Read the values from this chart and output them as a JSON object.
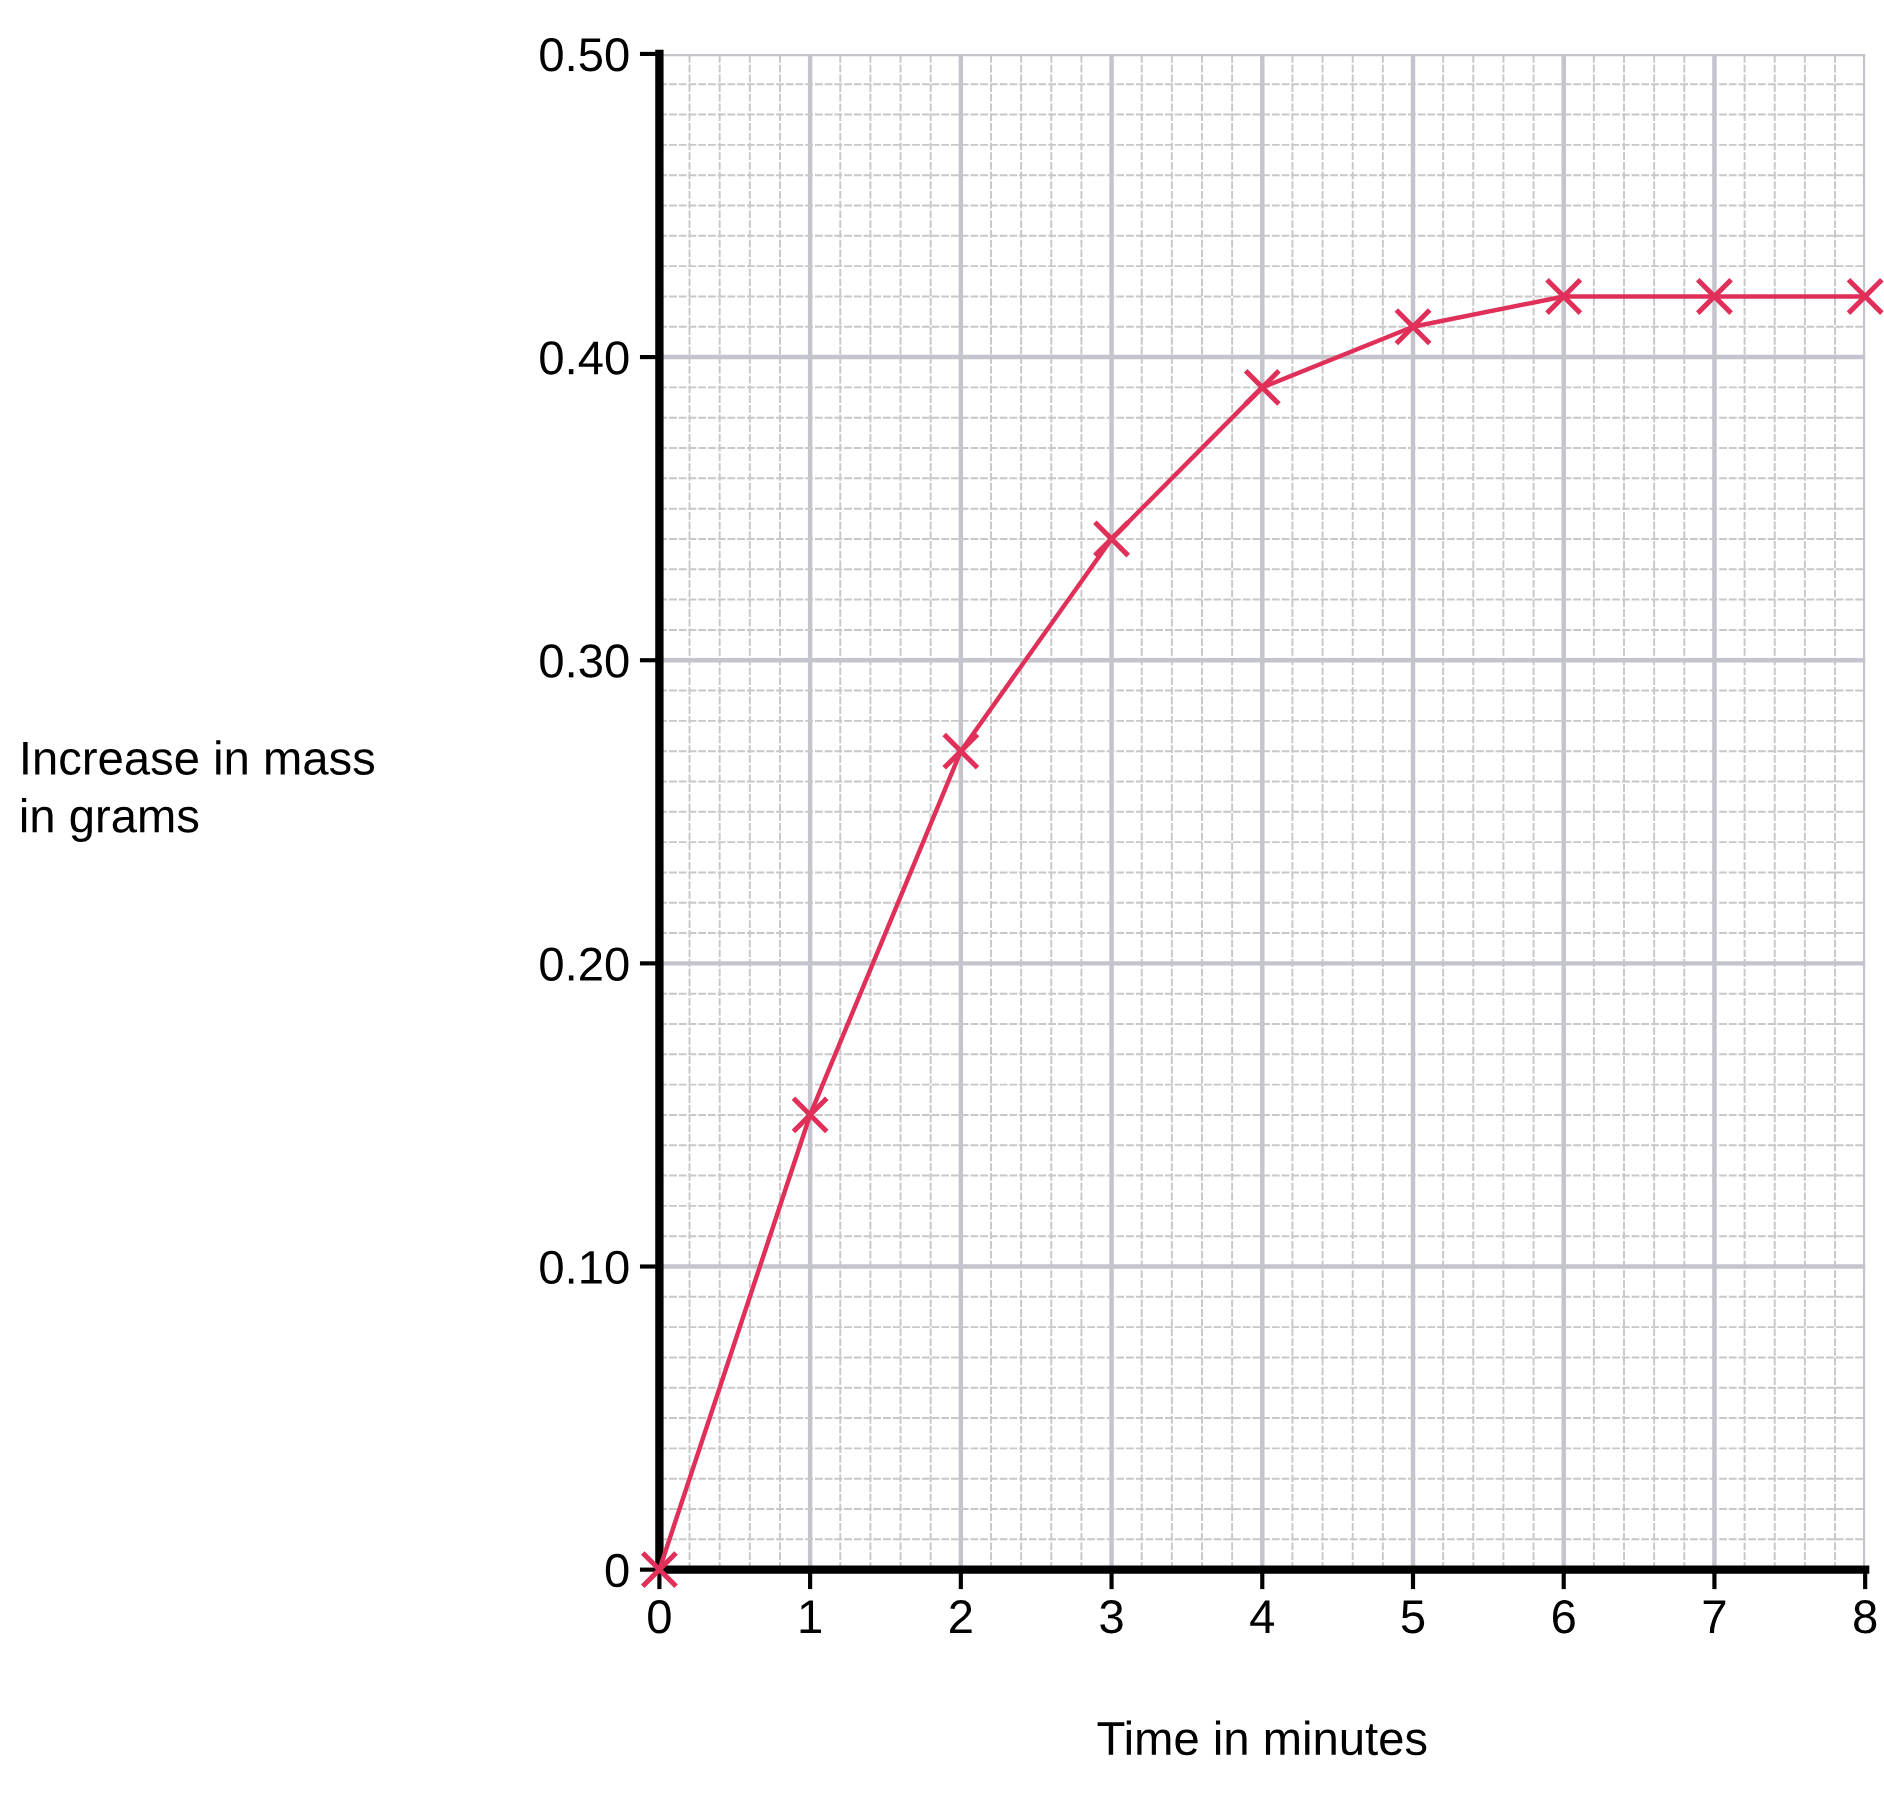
{
  "chart_data": {
    "type": "line",
    "xlabel": "Time in minutes",
    "ylabel": "Increase in mass\nin grams",
    "x": [
      0,
      1,
      2,
      3,
      4,
      5,
      6,
      7,
      8
    ],
    "series": [
      {
        "color": "#e0305a",
        "values": [
          0,
          0.15,
          0.27,
          0.34,
          0.39,
          0.41,
          0.42,
          0.42,
          0.42
        ]
      }
    ],
    "xlim": [
      0,
      8
    ],
    "ylim": [
      0,
      0.5
    ],
    "xticks": [
      0,
      1,
      2,
      3,
      4,
      5,
      6,
      7,
      8
    ],
    "yticks": [
      {
        "value": 0,
        "label": "0"
      },
      {
        "value": 0.1,
        "label": "0.10"
      },
      {
        "value": 0.2,
        "label": "0.20"
      },
      {
        "value": 0.3,
        "label": "0.30"
      },
      {
        "value": 0.4,
        "label": "0.40"
      },
      {
        "value": 0.5,
        "label": "0.50"
      }
    ],
    "grid": true,
    "marker": "cross",
    "line_style": "solid"
  }
}
